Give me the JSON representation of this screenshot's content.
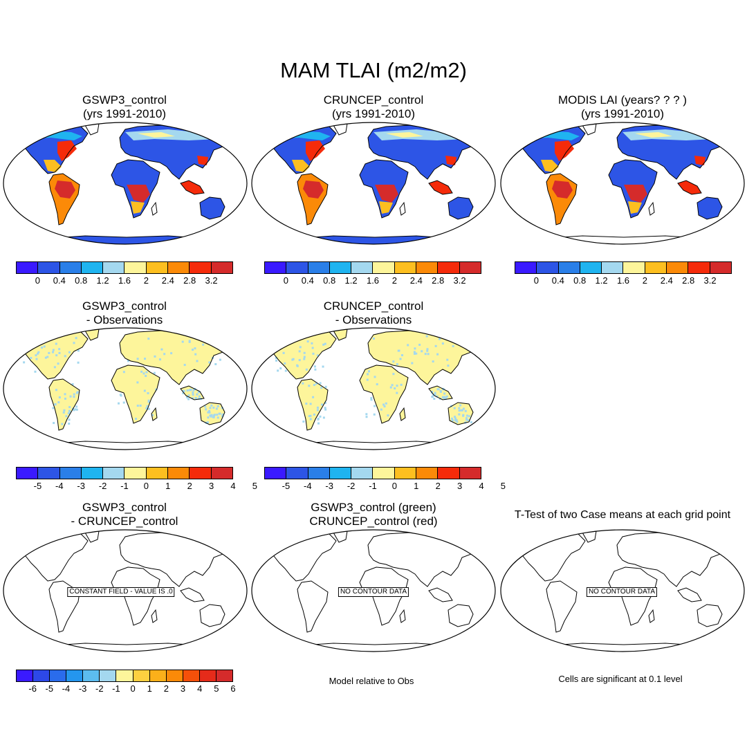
{
  "figure": {
    "title": "MAM TLAI (m2/m2)"
  },
  "panels": [
    {
      "line1": "GSWP3_control",
      "line2": "(yrs 1991-2010)",
      "kind": "abs",
      "message": ""
    },
    {
      "line1": "CRUNCEP_control",
      "line2": "(yrs 1991-2010)",
      "kind": "abs",
      "message": ""
    },
    {
      "line1": "MODIS LAI (years? ? ? )",
      "line2": "(yrs 1991-2010)",
      "kind": "abs",
      "message": ""
    },
    {
      "line1": "GSWP3_control",
      "line2": "- Observations",
      "kind": "diff",
      "message": ""
    },
    {
      "line1": "CRUNCEP_control",
      "line2": "- Observations",
      "kind": "diff",
      "message": ""
    },
    {
      "line1": "GSWP3_control",
      "line2": "- CRUNCEP_control",
      "kind": "empty",
      "message": "CONSTANT FIELD - VALUE IS .0"
    },
    {
      "line1": "GSWP3_control (green)",
      "line2": "CRUNCEP_control (red)",
      "kind": "empty",
      "message": "NO CONTOUR DATA"
    },
    {
      "line1": "T-Test of two Case means at each grid point",
      "line2": "",
      "kind": "empty",
      "message": "NO CONTOUR DATA"
    }
  ],
  "colorbars": {
    "abs": {
      "colors": [
        "#3a1aff",
        "#2d55e6",
        "#2a7fe8",
        "#1fb4f0",
        "#a4d8ef",
        "#fdf59b",
        "#fdbf20",
        "#fb8a08",
        "#f52b0a",
        "#d52b2b"
      ],
      "labels": [
        "0",
        "0.4",
        "0.8",
        "1.2",
        "1.6",
        "2",
        "2.4",
        "2.8",
        "3.2"
      ]
    },
    "diff": {
      "colors": [
        "#3a1aff",
        "#2d55e6",
        "#2a7fe8",
        "#1fb4f0",
        "#a4d8ef",
        "#fdf59b",
        "#fdbf20",
        "#fb8a08",
        "#f52b0a",
        "#d52b2b"
      ],
      "labels": [
        "-5",
        "-4",
        "-3",
        "-2",
        "-1",
        "0",
        "1",
        "2",
        "3",
        "4",
        "5"
      ]
    },
    "ttest": {
      "colors": [
        "#3a1aff",
        "#2d48e8",
        "#2a6cec",
        "#2496ee",
        "#5cbcef",
        "#a4d8ef",
        "#fdf59b",
        "#fdd040",
        "#fbb01a",
        "#fb8a08",
        "#f5500a",
        "#e52b1a",
        "#d52b2b"
      ],
      "labels": [
        "-6",
        "-5",
        "-4",
        "-3",
        "-2",
        "-1",
        "0",
        "1",
        "2",
        "3",
        "4",
        "5",
        "6"
      ]
    }
  },
  "notes": {
    "model_rel": "Model relative to Obs",
    "significance": "Cells are significant at 0.1 level"
  },
  "icons": {
    "map": "world-map-icon"
  }
}
